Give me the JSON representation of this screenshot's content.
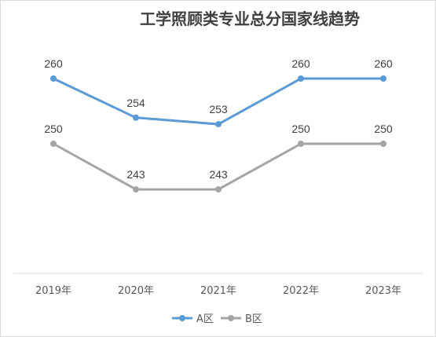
{
  "chart_data": {
    "type": "line",
    "title": "工学照顾类专业总分国家线趋势",
    "xlabel": "",
    "ylabel": "",
    "categories": [
      "2019年",
      "2020年",
      "2021年",
      "2022年",
      "2023年"
    ],
    "ylim": [
      220,
      270
    ],
    "grid": false,
    "legend_position": "bottom",
    "series": [
      {
        "name": "A区",
        "values": [
          260,
          254,
          253,
          260,
          260
        ],
        "color": "#5b9bd5"
      },
      {
        "name": "B区",
        "values": [
          250,
          243,
          243,
          250,
          250
        ],
        "color": "#a5a5a5"
      }
    ]
  }
}
